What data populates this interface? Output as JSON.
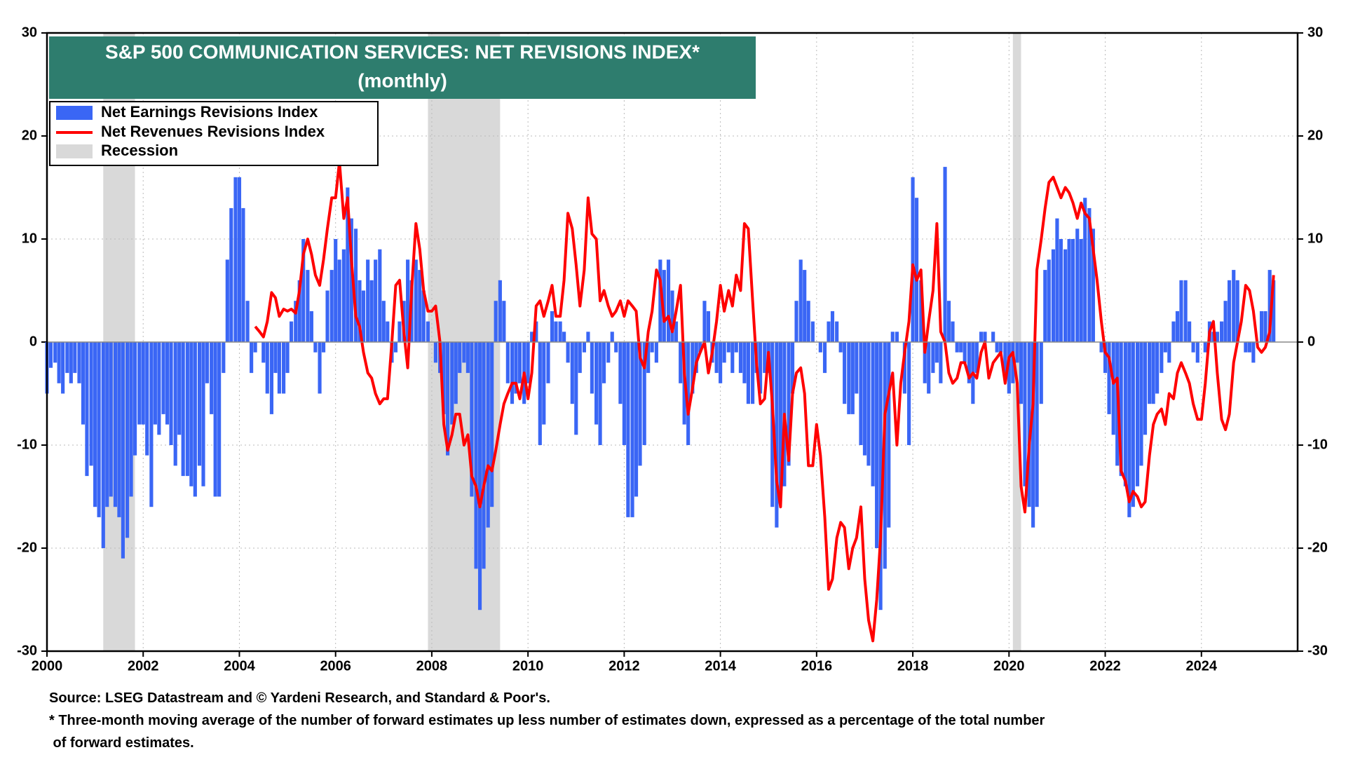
{
  "chart_data": {
    "type": "bar-line",
    "title": "S&P 500 COMMUNICATION SERVICES: NET REVISIONS INDEX*",
    "subtitle": "(monthly)",
    "notes": [
      "Source: LSEG Datastream and © Yardeni Research, and Standard & Poor's.",
      "* Three-month moving average of the number of forward estimates up less number of estimates down, expressed as a percentage of the total number",
      " of forward estimates."
    ],
    "xlim": [
      2000,
      2026
    ],
    "xticks": [
      2000,
      2002,
      2004,
      2006,
      2008,
      2010,
      2012,
      2014,
      2016,
      2018,
      2020,
      2022,
      2024
    ],
    "ylim": [
      -30,
      30
    ],
    "yticks": [
      -30,
      -20,
      -10,
      0,
      10,
      20,
      30
    ],
    "legend": "upper left",
    "recession": {
      "name": "Recession",
      "color": "#d9d9d9",
      "spans": [
        [
          2001.17,
          2001.83
        ],
        [
          2007.92,
          2009.42
        ],
        [
          2020.08,
          2020.25
        ]
      ]
    },
    "x": [
      2000,
      2000.08,
      2000.17,
      2000.25,
      2000.33,
      2000.42,
      2000.5,
      2000.58,
      2000.67,
      2000.75,
      2000.83,
      2000.92,
      2001,
      2001.08,
      2001.17,
      2001.25,
      2001.33,
      2001.42,
      2001.5,
      2001.58,
      2001.67,
      2001.75,
      2001.83,
      2001.92,
      2002,
      2002.08,
      2002.17,
      2002.25,
      2002.33,
      2002.42,
      2002.5,
      2002.58,
      2002.67,
      2002.75,
      2002.83,
      2002.92,
      2003,
      2003.08,
      2003.17,
      2003.25,
      2003.33,
      2003.42,
      2003.5,
      2003.58,
      2003.67,
      2003.75,
      2003.83,
      2003.92,
      2004,
      2004.08,
      2004.17,
      2004.25,
      2004.33,
      2004.42,
      2004.5,
      2004.58,
      2004.67,
      2004.75,
      2004.83,
      2004.92,
      2005,
      2005.08,
      2005.17,
      2005.25,
      2005.33,
      2005.42,
      2005.5,
      2005.58,
      2005.67,
      2005.75,
      2005.83,
      2005.92,
      2006,
      2006.08,
      2006.17,
      2006.25,
      2006.33,
      2006.42,
      2006.5,
      2006.58,
      2006.67,
      2006.75,
      2006.83,
      2006.92,
      2007,
      2007.08,
      2007.17,
      2007.25,
      2007.33,
      2007.42,
      2007.5,
      2007.58,
      2007.67,
      2007.75,
      2007.83,
      2007.92,
      2008,
      2008.08,
      2008.17,
      2008.25,
      2008.33,
      2008.42,
      2008.5,
      2008.58,
      2008.67,
      2008.75,
      2008.83,
      2008.92,
      2009,
      2009.08,
      2009.17,
      2009.25,
      2009.33,
      2009.42,
      2009.5,
      2009.58,
      2009.67,
      2009.75,
      2009.83,
      2009.92,
      2010,
      2010.08,
      2010.17,
      2010.25,
      2010.33,
      2010.42,
      2010.5,
      2010.58,
      2010.67,
      2010.75,
      2010.83,
      2010.92,
      2011,
      2011.08,
      2011.17,
      2011.25,
      2011.33,
      2011.42,
      2011.5,
      2011.58,
      2011.67,
      2011.75,
      2011.83,
      2011.92,
      2012,
      2012.08,
      2012.17,
      2012.25,
      2012.33,
      2012.42,
      2012.5,
      2012.58,
      2012.67,
      2012.75,
      2012.83,
      2012.92,
      2013,
      2013.08,
      2013.17,
      2013.25,
      2013.33,
      2013.42,
      2013.5,
      2013.58,
      2013.67,
      2013.75,
      2013.83,
      2013.92,
      2014,
      2014.08,
      2014.17,
      2014.25,
      2014.33,
      2014.42,
      2014.5,
      2014.58,
      2014.67,
      2014.75,
      2014.83,
      2014.92,
      2015,
      2015.08,
      2015.17,
      2015.25,
      2015.33,
      2015.42,
      2015.5,
      2015.58,
      2015.67,
      2015.75,
      2015.83,
      2015.92,
      2016,
      2016.08,
      2016.17,
      2016.25,
      2016.33,
      2016.42,
      2016.5,
      2016.58,
      2016.67,
      2016.75,
      2016.83,
      2016.92,
      2017,
      2017.08,
      2017.17,
      2017.25,
      2017.33,
      2017.42,
      2017.5,
      2017.58,
      2017.67,
      2017.75,
      2017.83,
      2017.92,
      2018,
      2018.08,
      2018.17,
      2018.25,
      2018.33,
      2018.42,
      2018.5,
      2018.58,
      2018.67,
      2018.75,
      2018.83,
      2018.92,
      2019,
      2019.08,
      2019.17,
      2019.25,
      2019.33,
      2019.42,
      2019.5,
      2019.58,
      2019.67,
      2019.75,
      2019.83,
      2019.92,
      2020,
      2020.08,
      2020.17,
      2020.25,
      2020.33,
      2020.42,
      2020.5,
      2020.58,
      2020.67,
      2020.75,
      2020.83,
      2020.92,
      2021,
      2021.08,
      2021.17,
      2021.25,
      2021.33,
      2021.42,
      2021.5,
      2021.58,
      2021.67,
      2021.75,
      2021.83,
      2021.92,
      2022,
      2022.08,
      2022.17,
      2022.25,
      2022.33,
      2022.42,
      2022.5,
      2022.58,
      2022.67,
      2022.75,
      2022.83,
      2022.92,
      2023,
      2023.08,
      2023.17,
      2023.25,
      2023.33,
      2023.42,
      2023.5,
      2023.58,
      2023.67,
      2023.75,
      2023.83,
      2023.92,
      2024,
      2024.08,
      2024.17,
      2024.25,
      2024.33,
      2024.42,
      2024.5,
      2024.58,
      2024.67,
      2024.75,
      2024.83,
      2024.92,
      2025,
      2025.08,
      2025.17,
      2025.25,
      2025.33,
      2025.42,
      2025.5
    ],
    "series": [
      {
        "name": "Net Earnings Revisions Index",
        "color": "#3a66f5",
        "values": [
          -5,
          -2.5,
          -2,
          -4,
          -5,
          -3,
          -4,
          -3,
          -4,
          -8,
          -13,
          -12,
          -16,
          -17,
          -20,
          -16,
          -15,
          -16,
          -17,
          -21,
          -19,
          -15,
          -11,
          -8,
          -8,
          -11,
          -16,
          -8,
          -9,
          -7,
          -8,
          -10,
          -12,
          -9,
          -13,
          -13,
          -14,
          -15,
          -12,
          -14,
          -4,
          -7,
          -15,
          -15,
          -3,
          8,
          13,
          16,
          16,
          13,
          4,
          -3,
          -1,
          0,
          -2,
          -5,
          -7,
          -3,
          -5,
          -5,
          -3,
          2,
          4,
          6,
          10,
          7,
          3,
          -1,
          -5,
          -1,
          5,
          7,
          10,
          8,
          9,
          15,
          12,
          11,
          6,
          5,
          8,
          6,
          8,
          9,
          4,
          2,
          -2,
          -1,
          2,
          4,
          8,
          6,
          8,
          7,
          5,
          2,
          0,
          -2,
          -3,
          -7,
          -11,
          -8,
          -6,
          -3,
          -2,
          -3,
          -15,
          -22,
          -26,
          -22,
          -18,
          -16,
          4,
          6,
          4,
          -4,
          -6,
          -5,
          -4,
          -6,
          -4,
          1,
          2,
          -10,
          -8,
          -4,
          3,
          2,
          2,
          1,
          -2,
          -6,
          -9,
          -3,
          -1,
          1,
          -5,
          -8,
          -10,
          -4,
          -2,
          1,
          -1,
          -6,
          -10,
          -17,
          -17,
          -15,
          -12,
          -10,
          -3,
          -1,
          -2,
          8,
          7,
          8,
          5,
          2,
          -4,
          -8,
          -10,
          -5,
          -3,
          -1,
          4,
          3,
          -2,
          -3,
          -4,
          -2,
          -1,
          -3,
          -1,
          -3,
          -4,
          -6,
          -6,
          -3,
          -5,
          -3,
          -3,
          -16,
          -18,
          -15,
          -14,
          -12,
          -5,
          4,
          8,
          7,
          4,
          2,
          0,
          -1,
          -3,
          2,
          3,
          2,
          -1,
          -6,
          -7,
          -7,
          -5,
          -10,
          -11,
          -12,
          -14,
          -20,
          -26,
          -22,
          -18,
          1,
          1,
          0,
          -5,
          -10,
          16,
          14,
          6,
          -4,
          -5,
          -3,
          -2,
          -4,
          17,
          4,
          2,
          -1,
          -1,
          -2,
          -4,
          -6,
          -3,
          1,
          1,
          0,
          1,
          -1,
          -1,
          -3,
          -5,
          -4,
          -2,
          -6,
          -14,
          -16,
          -18,
          -16,
          -6,
          7,
          8,
          9,
          12,
          10,
          9,
          10,
          10,
          11,
          10,
          14,
          13,
          11,
          0,
          -1,
          -3,
          -7,
          -9,
          -12,
          -13,
          -14,
          -17,
          -16,
          -14,
          -12,
          -9,
          -6,
          -6,
          -5,
          -3,
          -1,
          -2,
          2,
          3,
          6,
          6,
          2,
          -1,
          -2,
          0,
          -1,
          2,
          1,
          1,
          2,
          4,
          6,
          7,
          6,
          0,
          -1,
          -1,
          -2,
          0,
          3,
          3,
          7,
          6
        ]
      },
      {
        "name": "Net Revenues Revisions Index",
        "color": "#ff0000",
        "values": [
          null,
          null,
          null,
          null,
          null,
          null,
          null,
          null,
          null,
          null,
          null,
          null,
          null,
          null,
          null,
          null,
          null,
          null,
          null,
          null,
          null,
          null,
          null,
          null,
          null,
          null,
          null,
          null,
          null,
          null,
          null,
          null,
          null,
          null,
          null,
          null,
          null,
          null,
          null,
          null,
          null,
          null,
          null,
          null,
          null,
          null,
          null,
          null,
          null,
          null,
          null,
          null,
          1.5,
          1,
          0.5,
          2,
          4.8,
          4.3,
          2.5,
          3.2,
          3,
          3.2,
          2.8,
          5,
          8.5,
          10,
          8.5,
          6.5,
          5.5,
          8,
          11,
          14,
          14,
          17.5,
          12,
          14,
          8,
          2.5,
          1.5,
          -1,
          -3,
          -3.5,
          -5,
          -6,
          -5.5,
          -5.5,
          0,
          5.5,
          6,
          1,
          -2.5,
          5,
          11.5,
          9,
          5,
          3,
          3,
          3.5,
          0,
          -8,
          -10.5,
          -9,
          -7,
          -7,
          -10,
          -9,
          -13,
          -14,
          -16,
          -14,
          -12,
          -12.5,
          -10.5,
          -8,
          -6,
          -5,
          -4,
          -4,
          -5.5,
          -3,
          -5.5,
          -3,
          3.5,
          4,
          2.5,
          4,
          5.5,
          2.5,
          2.5,
          6,
          12.5,
          11,
          7.5,
          3.5,
          7,
          14,
          10.5,
          10,
          4,
          5,
          3.5,
          2.5,
          3,
          4,
          2.5,
          4,
          3.5,
          3,
          -1.5,
          -2.5,
          1,
          3,
          7,
          6,
          2,
          2.5,
          1,
          3,
          5.5,
          -3,
          -7,
          -4.5,
          -2,
          -1,
          0,
          -3,
          -1,
          2,
          5.5,
          3,
          5,
          3.5,
          6.5,
          5,
          11.5,
          11,
          4,
          -2,
          -6,
          -5.5,
          -1,
          -6,
          -13.5,
          -16,
          -7,
          -11.5,
          -5,
          -3,
          -2.5,
          -5,
          -12,
          -12,
          -8,
          -11,
          -17,
          -24,
          -23,
          -19,
          -17.5,
          -18,
          -22,
          -20,
          -19,
          -16,
          -23,
          -27,
          -29,
          -25,
          -19,
          -7,
          -5,
          -3,
          -10,
          -4,
          -1,
          2,
          7.5,
          6,
          7,
          -1,
          2,
          5,
          11.5,
          1,
          0,
          -3,
          -4,
          -3.5,
          -2,
          -2,
          -3.5,
          -3,
          -3.5,
          -1,
          0,
          -3.5,
          -2,
          -1.5,
          -1,
          -4,
          -1.5,
          -1,
          -4,
          -14,
          -16.5,
          -10,
          -6,
          7,
          10,
          13,
          15.5,
          16,
          15,
          14,
          15,
          14.5,
          13.5,
          12,
          13.5,
          12.5,
          12,
          9,
          6,
          2,
          -1,
          -1.5,
          -4,
          -3.5,
          -12.5,
          -13.5,
          -15.5,
          -14.5,
          -15,
          -16,
          -15.5,
          -11,
          -8,
          -7,
          -6.5,
          -8,
          -5,
          -5.5,
          -3,
          -2,
          -3,
          -4,
          -6,
          -7.5,
          -7.5,
          -4,
          1,
          2,
          -3,
          -7.5,
          -8.5,
          -7,
          -2,
          0,
          2,
          5.5,
          5,
          3,
          -0.5,
          -1,
          -0.5,
          1,
          6.5
        ]
      }
    ]
  }
}
